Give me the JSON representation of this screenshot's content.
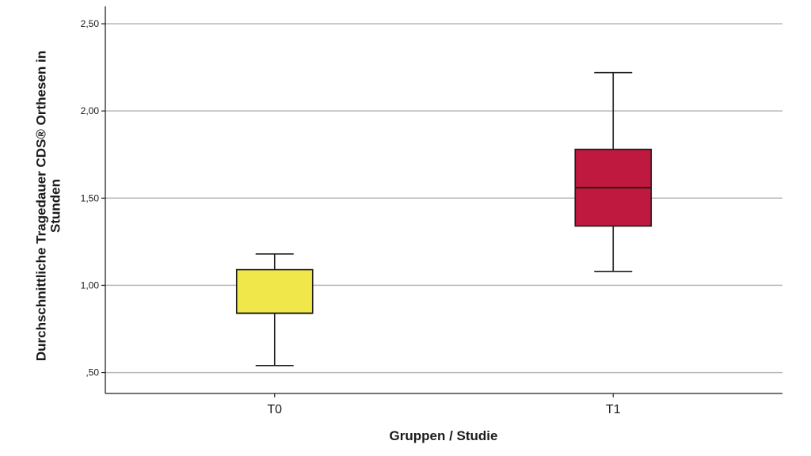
{
  "chart_data": {
    "type": "boxplot",
    "xlabel": "Gruppen / Studie",
    "ylabel": "Durchschnittliche Tragedauer CDS® Orthesen in Stunden",
    "ylim": [
      0.38,
      2.6
    ],
    "yticks": [
      0.5,
      1.0,
      1.5,
      2.0,
      2.5
    ],
    "ytick_labels": [
      ",50",
      "1,00",
      "1,50",
      "2,00",
      "2,50"
    ],
    "grid": true,
    "legend": "none",
    "categories": [
      "T0",
      "T1"
    ],
    "boxes": [
      {
        "category": "T0",
        "whisker_low": 0.54,
        "q1": 0.84,
        "median": 0.84,
        "q3": 1.09,
        "whisker_high": 1.18,
        "color": "#f0e84a"
      },
      {
        "category": "T1",
        "whisker_low": 1.08,
        "q1": 1.34,
        "median": 1.56,
        "q3": 1.78,
        "whisker_high": 2.22,
        "color": "#c0193f"
      }
    ]
  }
}
